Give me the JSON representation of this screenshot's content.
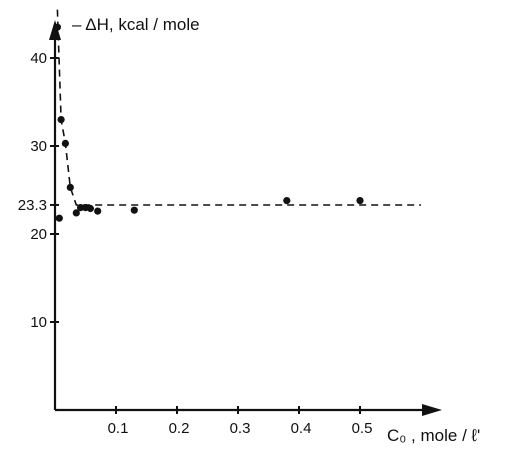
{
  "chart_data": {
    "type": "scatter",
    "title": "",
    "ylabel": "– ΔH, kcal / mole",
    "xlabel": "C₀ , mole / ℓ'",
    "xlim": [
      0,
      0.6
    ],
    "ylim": [
      0,
      48
    ],
    "x_ticks": [
      {
        "value": 0.1,
        "label": "0.1"
      },
      {
        "value": 0.2,
        "label": "0.2"
      },
      {
        "value": 0.3,
        "label": "0.3"
      },
      {
        "value": 0.4,
        "label": "0.4"
      },
      {
        "value": 0.5,
        "label": "0.5"
      }
    ],
    "y_ticks": [
      {
        "value": 10,
        "label": "10"
      },
      {
        "value": 20,
        "label": "20"
      },
      {
        "value": 23.3,
        "label": "23.3"
      },
      {
        "value": 30,
        "label": "30"
      },
      {
        "value": 40,
        "label": "40"
      }
    ],
    "grid": false,
    "legend": "none",
    "reference_level": 23.3,
    "series": [
      {
        "points": [
          [
            0.004,
            43.5
          ],
          [
            0.007,
            21.8
          ],
          [
            0.01,
            33.0
          ],
          [
            0.017,
            30.3
          ],
          [
            0.025,
            25.3
          ],
          [
            0.035,
            22.4
          ],
          [
            0.042,
            23.0
          ],
          [
            0.05,
            23.0
          ],
          [
            0.058,
            22.9
          ],
          [
            0.07,
            22.6
          ],
          [
            0.13,
            22.7
          ],
          [
            0.38,
            23.8
          ],
          [
            0.5,
            23.8
          ]
        ]
      }
    ],
    "trend_curve": [
      [
        0.004,
        45.5
      ],
      [
        0.01,
        33.0
      ],
      [
        0.017,
        30.3
      ],
      [
        0.025,
        25.3
      ],
      [
        0.035,
        23.3
      ],
      [
        0.6,
        23.3
      ]
    ]
  }
}
